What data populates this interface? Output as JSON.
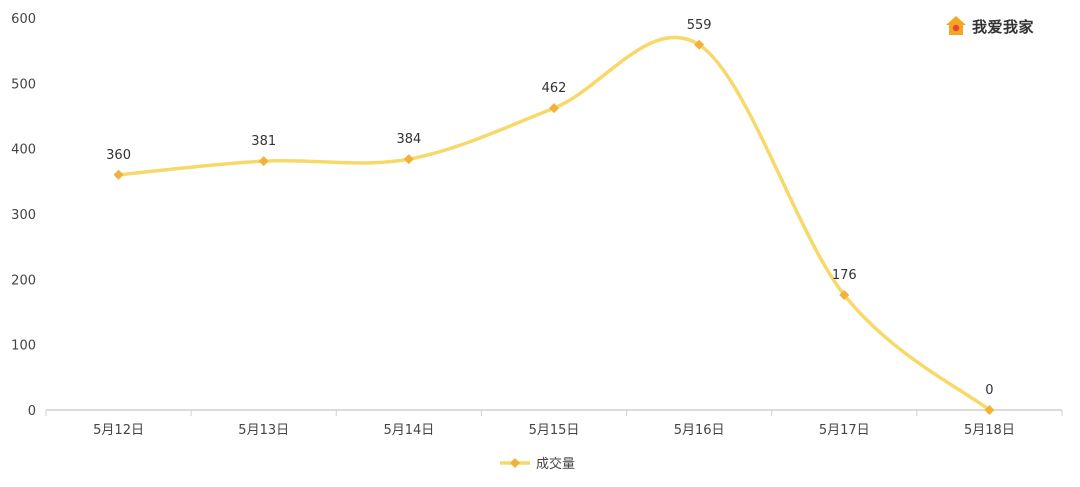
{
  "brand": {
    "logo_text": "我爱我家",
    "logo_color": "#F5A623",
    "logo_dot_color": "#E8443A"
  },
  "chart_data": {
    "type": "line",
    "categories": [
      "5月12日",
      "5月13日",
      "5月14日",
      "5月15日",
      "5月16日",
      "5月17日",
      "5月18日"
    ],
    "series": [
      {
        "name": "成交量",
        "values": [
          360,
          381,
          384,
          462,
          559,
          176,
          0
        ],
        "color": "#F7D96A",
        "marker_color": "#F3B13B"
      }
    ],
    "title": "",
    "xlabel": "",
    "ylabel": "",
    "ylim": [
      0,
      600
    ],
    "yticks": [
      0,
      100,
      200,
      300,
      400,
      500,
      600
    ],
    "grid": false,
    "smooth": true,
    "data_labels": true,
    "legend_position": "bottom-center"
  }
}
